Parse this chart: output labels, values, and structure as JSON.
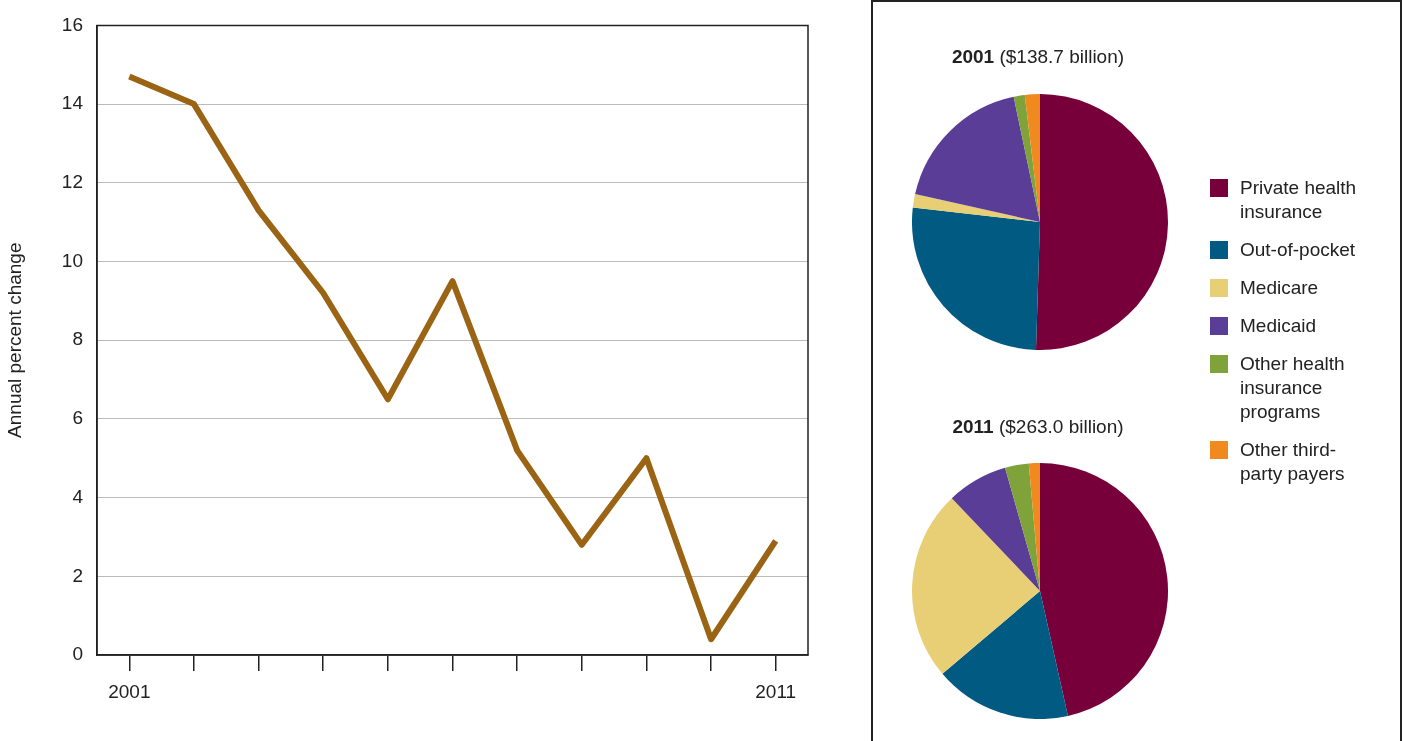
{
  "chart_data": [
    {
      "type": "line",
      "ylabel": "Annual percent change",
      "x": [
        2001,
        2002,
        2003,
        2004,
        2005,
        2006,
        2007,
        2008,
        2009,
        2010,
        2011
      ],
      "series": [
        {
          "color": "#9a6414",
          "values": [
            14.7,
            14.0,
            11.3,
            9.2,
            6.5,
            9.5,
            5.2,
            2.8,
            5.0,
            0.4,
            2.9
          ]
        }
      ],
      "xlim": [
        2000.5,
        2011.5
      ],
      "xticks": [
        {
          "value": 2001,
          "label": "2001"
        },
        {
          "value": 2002,
          "label": null
        },
        {
          "value": 2003,
          "label": null
        },
        {
          "value": 2004,
          "label": null
        },
        {
          "value": 2005,
          "label": null
        },
        {
          "value": 2006,
          "label": null
        },
        {
          "value": 2007,
          "label": null
        },
        {
          "value": 2008,
          "label": null
        },
        {
          "value": 2009,
          "label": null
        },
        {
          "value": 2010,
          "label": null
        },
        {
          "value": 2011,
          "label": "2011"
        }
      ],
      "ylim": [
        0,
        16
      ],
      "yticks": [
        0,
        2,
        4,
        6,
        8,
        10,
        12,
        14,
        16
      ],
      "grid": "y",
      "marker": "none",
      "line_style": "solid",
      "legend": false
    },
    {
      "type": "pie",
      "categories": [
        "Private health insurance",
        "Out-of-pocket",
        "Medicare",
        "Medicaid",
        "Other health insurance programs",
        "Other third-party payers"
      ],
      "colors": [
        "#78003a",
        "#005a82",
        "#e8cf76",
        "#5a3d96",
        "#7fa23a",
        "#f08a1e"
      ],
      "series": [
        {
          "name": "2001 ($138.7 billion)",
          "values": [
            50.5,
            26.3,
            1.7,
            18.2,
            1.4,
            1.9
          ]
        },
        {
          "name": "2011 ($263.0 billion)",
          "values": [
            46.5,
            17.3,
            24.1,
            7.7,
            3.0,
            1.4
          ]
        }
      ],
      "legend": "right"
    }
  ]
}
